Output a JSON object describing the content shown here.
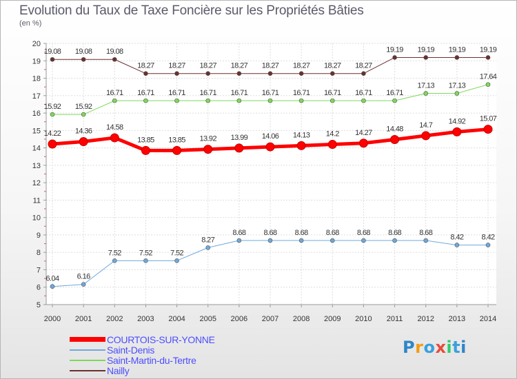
{
  "title": "Evolution du Taux de Taxe Foncière sur les Propriétés Bâties",
  "unit": "(en %)",
  "logo": {
    "text": "Proxiti",
    "colors": [
      "#2e86c9",
      "#f39c12",
      "#3aa0dd",
      "#e74c3c",
      "#2ecc71",
      "#3aa0dd"
    ]
  },
  "chart_data": {
    "type": "line",
    "title": "Evolution du Taux de Taxe Foncière sur les Propriétés Bâties",
    "ylabel": "(en %)",
    "xlabel": "",
    "ylim": [
      5,
      20
    ],
    "yticks": [
      5,
      6,
      7,
      8,
      9,
      10,
      11,
      12,
      13,
      14,
      15,
      16,
      17,
      18,
      19,
      20
    ],
    "grid": true,
    "legend_position": "bottom-left",
    "x": [
      "2000",
      "2001",
      "2002",
      "2003",
      "2004",
      "2005",
      "2006",
      "2007",
      "2008",
      "2009",
      "2010",
      "2011",
      "2012",
      "2013",
      "2014"
    ],
    "series": [
      {
        "name": "Nailly",
        "color": "#6b2f2f",
        "width": 1,
        "values": [
          19.08,
          19.08,
          19.08,
          18.27,
          18.27,
          18.27,
          18.27,
          18.27,
          18.27,
          18.27,
          18.27,
          19.19,
          19.19,
          19.19,
          19.19
        ],
        "labels": [
          "19.08",
          "19.08",
          "19.08",
          "18.27",
          "18.27",
          "18.27",
          "18.27",
          "18.27",
          "18.27",
          "18.27",
          "18.27",
          "19.19",
          "19.19",
          "19.19",
          "19.19"
        ]
      },
      {
        "name": "Saint-Martin-du-Tertre",
        "color": "#7ed957",
        "width": 1,
        "values": [
          15.92,
          15.92,
          16.71,
          16.71,
          16.71,
          16.71,
          16.71,
          16.71,
          16.71,
          16.71,
          16.71,
          16.71,
          17.13,
          17.13,
          17.64
        ],
        "labels": [
          "15.92",
          "15.92",
          "16.71",
          "16.71",
          "16.71",
          "16.71",
          "16.71",
          "16.71",
          "16.71",
          "16.71",
          "16.71",
          "16.71",
          "17.13",
          "17.13",
          "17.64"
        ]
      },
      {
        "name": "Saint-Denis",
        "color": "#6fa8dc",
        "width": 1,
        "values": [
          6.04,
          6.16,
          7.52,
          7.52,
          7.52,
          8.27,
          8.68,
          8.68,
          8.68,
          8.68,
          8.68,
          8.68,
          8.68,
          8.42,
          8.42
        ],
        "labels": [
          "6.04",
          "6.16",
          "7.52",
          "7.52",
          "7.52",
          "8.27",
          "8.68",
          "8.68",
          "8.68",
          "8.68",
          "8.68",
          "8.68",
          "8.68",
          "8.42",
          "8.42"
        ]
      },
      {
        "name": "COURTOIS-SUR-YONNE",
        "color": "#ff0000",
        "width": 5,
        "values": [
          14.22,
          14.36,
          14.58,
          13.85,
          13.85,
          13.92,
          13.99,
          14.06,
          14.13,
          14.2,
          14.27,
          14.48,
          14.7,
          14.92,
          15.07
        ],
        "labels": [
          "14.22",
          "14.36",
          "14.58",
          "13.85",
          "13.85",
          "13.92",
          "13.99",
          "14.06",
          "14.13",
          "14.2",
          "14.27",
          "14.48",
          "14.7",
          "14.92",
          "15.07"
        ]
      }
    ],
    "legend": [
      {
        "name": "COURTOIS-SUR-YONNE",
        "color": "#ff0000",
        "width": 7
      },
      {
        "name": "Saint-Denis",
        "color": "#6fa8dc",
        "width": 2
      },
      {
        "name": "Saint-Martin-du-Tertre",
        "color": "#7ed957",
        "width": 2
      },
      {
        "name": "Nailly",
        "color": "#6b2f2f",
        "width": 2
      }
    ]
  }
}
